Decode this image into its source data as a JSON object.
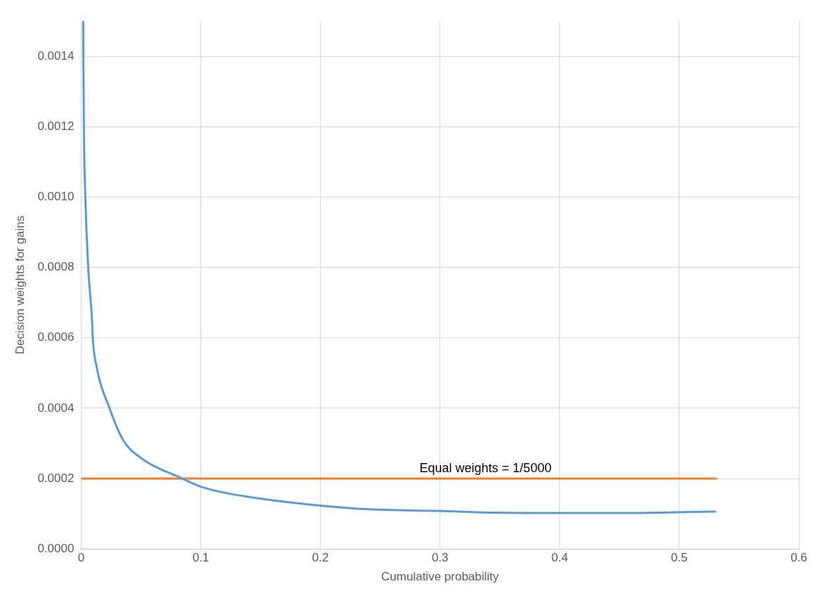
{
  "chart_data": {
    "type": "line",
    "xlabel": "Cumulative probability",
    "ylabel": "Decision weights for gains",
    "xlim": [
      0,
      0.6
    ],
    "xticks": [
      0,
      0.1,
      0.2,
      0.3,
      0.4,
      0.5,
      0.6
    ],
    "ylim": [
      0,
      0.0015
    ],
    "yticks": [
      {
        "value": 0,
        "label": "0.0000"
      },
      {
        "value": 0.0002,
        "label": "0.0002"
      },
      {
        "value": 0.0004,
        "label": "0.0004"
      },
      {
        "value": 0.0006,
        "label": "0.0006"
      },
      {
        "value": 0.0008,
        "label": "0.0008"
      },
      {
        "value": 0.001,
        "label": "0.0010"
      },
      {
        "value": 0.0012,
        "label": "0.0012"
      },
      {
        "value": 0.0014,
        "label": "0.0014"
      }
    ],
    "grid": true,
    "legend": false,
    "marker": "none",
    "line_style": "solid",
    "series": [
      {
        "color": "#5b9bd5",
        "x": [
          0.0017,
          0.0023,
          0.0035,
          0.0059,
          0.0091,
          0.0097,
          0.0128,
          0.0237,
          0.035,
          0.051,
          0.0847,
          0.0999,
          0.136,
          0.197,
          0.238,
          0.299,
          0.348,
          0.399,
          0.457,
          0.496,
          0.53
        ],
        "values": [
          0.0015,
          0.0012,
          0.001,
          0.0008,
          0.00065,
          0.0006,
          0.00052,
          0.0004,
          0.00031,
          0.000256,
          0.0002,
          0.000177,
          0.00015,
          0.000124,
          0.000113,
          0.000108,
          0.000103,
          0.000102,
          0.000102,
          0.000104,
          0.000106
        ]
      },
      {
        "color": "#ed7d31",
        "x": [
          0,
          0.531
        ],
        "values": [
          0.0002,
          0.0002
        ]
      }
    ],
    "annotations": [
      {
        "text": "Equal weights = 1/5000",
        "x": 0.338,
        "y": 0.0002
      }
    ]
  }
}
